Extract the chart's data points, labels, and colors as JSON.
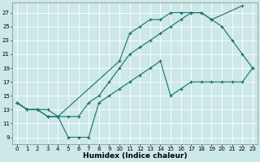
{
  "xlabel": "Humidex (Indice chaleur)",
  "bg_color": "#cce8e8",
  "line_color": "#1a6e6e",
  "grid_color": "#ffffff",
  "xlim": [
    -0.5,
    23.5
  ],
  "ylim": [
    8.0,
    28.5
  ],
  "xticks": [
    0,
    1,
    2,
    3,
    4,
    5,
    6,
    7,
    8,
    9,
    10,
    11,
    12,
    13,
    14,
    15,
    16,
    17,
    18,
    19,
    20,
    21,
    22,
    23
  ],
  "yticks": [
    9,
    11,
    13,
    15,
    17,
    19,
    21,
    23,
    25,
    27
  ],
  "line1_x": [
    0,
    1,
    2,
    3,
    4,
    10,
    11,
    12,
    13,
    14,
    15,
    16,
    17,
    18,
    19,
    22
  ],
  "line1_y": [
    14,
    13,
    13,
    13,
    12,
    20,
    24,
    25,
    26,
    26,
    27,
    27,
    27,
    27,
    26,
    28
  ],
  "line2_x": [
    0,
    1,
    2,
    3,
    4,
    5,
    6,
    7,
    8,
    9,
    10,
    11,
    12,
    13,
    14,
    15,
    16,
    17,
    18,
    19,
    20,
    21,
    22,
    23
  ],
  "line2_y": [
    14,
    13,
    13,
    12,
    12,
    12,
    12,
    14,
    15,
    17,
    19,
    21,
    22,
    23,
    24,
    25,
    26,
    27,
    27,
    26,
    25,
    23,
    21,
    19
  ],
  "line3_x": [
    0,
    1,
    2,
    3,
    4,
    5,
    6,
    7,
    8,
    9,
    10,
    11,
    12,
    13,
    14,
    15,
    16,
    17,
    18,
    19,
    20,
    21,
    22,
    23
  ],
  "line3_y": [
    14,
    13,
    13,
    12,
    12,
    9,
    9,
    9,
    14,
    15,
    16,
    17,
    18,
    19,
    20,
    15,
    16,
    17,
    17,
    17,
    17,
    17,
    17,
    19
  ],
  "marker": "+",
  "markersize": 3,
  "linewidth": 0.8,
  "tick_fontsize": 5.0,
  "label_fontsize": 6.5,
  "label_fontweight": "bold"
}
